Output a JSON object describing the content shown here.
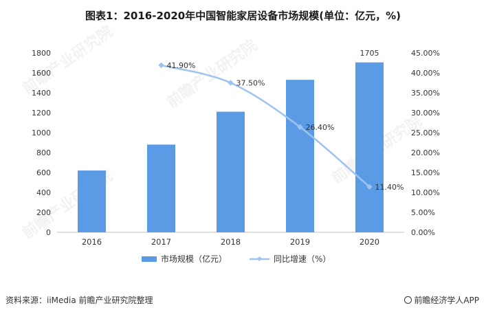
{
  "title": "图表1：2016-2020年中国智能家居设备市场规模(单位：亿元，%)",
  "source": "资料来源：iiMedia 前瞻产业研究院整理",
  "brand": "前瞻经济学人APP",
  "watermark": "前瞻产业研究院",
  "chart_data": {
    "type": "bar",
    "categories": [
      "2016",
      "2017",
      "2018",
      "2019",
      "2020"
    ],
    "series": [
      {
        "name": "市场规模（亿元）",
        "type": "bar",
        "axis": "left",
        "values": [
          620,
          880,
          1210,
          1530,
          1705
        ],
        "data_labels": [
          "",
          "",
          "",
          "",
          "1705"
        ],
        "color": "#5b9be6"
      },
      {
        "name": "同比增速（%）",
        "type": "line",
        "axis": "right",
        "values": [
          null,
          41.9,
          37.5,
          26.4,
          11.4
        ],
        "data_labels": [
          "",
          "41.90%",
          "37.50%",
          "26.40%",
          "11.40%"
        ],
        "color": "#9dc3f0"
      }
    ],
    "y_left": {
      "min": 0,
      "max": 1800,
      "step": 200,
      "ticks": [
        "0",
        "200",
        "400",
        "600",
        "800",
        "1000",
        "1200",
        "1400",
        "1600",
        "1800"
      ]
    },
    "y_right": {
      "min": 0,
      "max": 45,
      "step": 5,
      "ticks": [
        "0.00%",
        "5.00%",
        "10.00%",
        "15.00%",
        "20.00%",
        "25.00%",
        "30.00%",
        "35.00%",
        "40.00%",
        "45.00%"
      ]
    },
    "grid": false,
    "legend": "bottom"
  }
}
